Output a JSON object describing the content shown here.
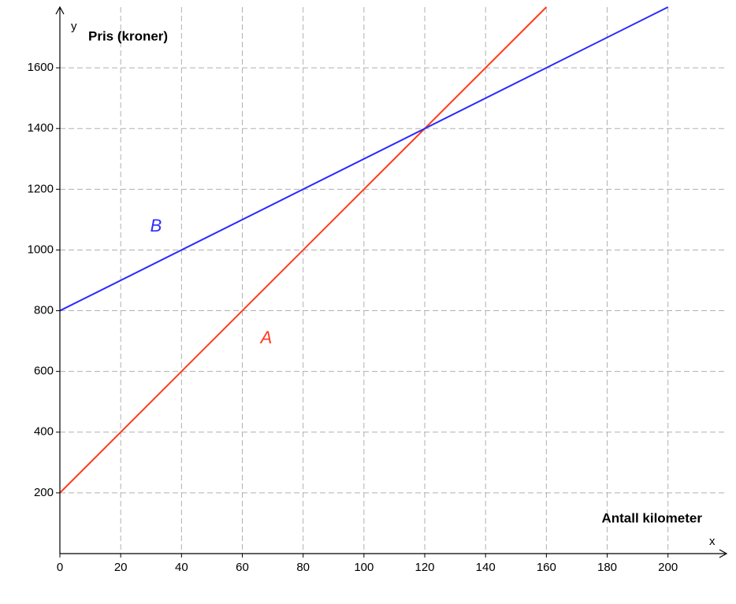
{
  "chart_data": {
    "type": "line",
    "y_label": "Pris (kroner)",
    "x_label": "Antall kilometer",
    "x_axis_name": "x",
    "y_axis_name": "y",
    "xlim": [
      0,
      219
    ],
    "ylim": [
      0,
      1800
    ],
    "xticks": [
      0,
      20,
      40,
      60,
      80,
      100,
      120,
      140,
      160,
      180,
      200
    ],
    "yticks": [
      200,
      400,
      600,
      800,
      1000,
      1200,
      1400,
      1600
    ],
    "grid": true,
    "series": [
      {
        "name": "A",
        "color": "#ff3b1f",
        "x": [
          0,
          160
        ],
        "values": [
          200,
          1800
        ]
      },
      {
        "name": "B",
        "color": "#2a2aff",
        "x": [
          0,
          200
        ],
        "values": [
          800,
          1800
        ]
      }
    ]
  }
}
